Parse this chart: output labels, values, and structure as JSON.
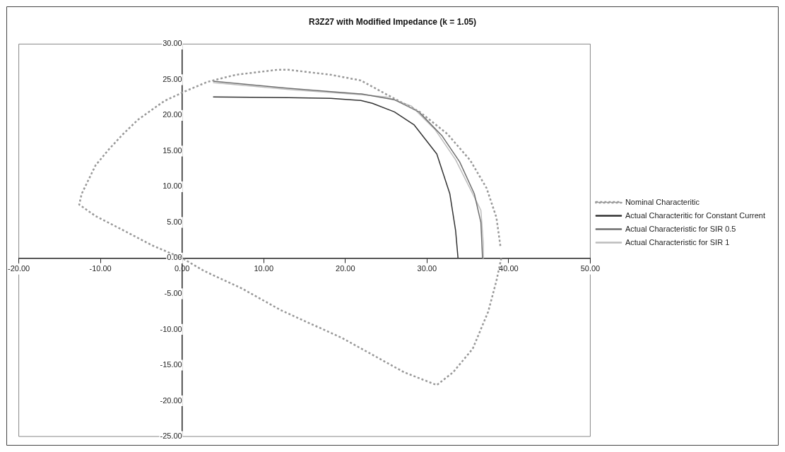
{
  "chart_data": {
    "type": "line",
    "title": "R3Z27 with Modified Impedance (k = 1.05)",
    "xlim": [
      -20,
      50
    ],
    "ylim": [
      -25,
      30
    ],
    "xticks": [
      {
        "value": -20,
        "label": "-20.00"
      },
      {
        "value": -10,
        "label": "-10.00"
      },
      {
        "value": 0,
        "label": "0.00"
      },
      {
        "value": 10,
        "label": "10.00"
      },
      {
        "value": 20,
        "label": "20.00"
      },
      {
        "value": 30,
        "label": "30.00"
      },
      {
        "value": 40,
        "label": "40.00"
      },
      {
        "value": 50,
        "label": "50.00"
      }
    ],
    "yticks": [
      {
        "value": -25,
        "label": "-25.00"
      },
      {
        "value": -20,
        "label": "-20.00"
      },
      {
        "value": -15,
        "label": "-15.00"
      },
      {
        "value": -10,
        "label": "-10.00"
      },
      {
        "value": -5,
        "label": "-5.00"
      },
      {
        "value": 0,
        "label": "0.00"
      },
      {
        "value": 5,
        "label": "5.00"
      },
      {
        "value": 10,
        "label": "10.00"
      },
      {
        "value": 15,
        "label": "15.00"
      },
      {
        "value": 20,
        "label": "20.00"
      },
      {
        "value": 25,
        "label": "25.00"
      },
      {
        "value": 30,
        "label": "30.00"
      }
    ],
    "grid": false,
    "legend": "right",
    "marker": "none",
    "series": [
      {
        "name": "Nominal Characteritic",
        "color": "#999999",
        "line_style": "dotted",
        "x": [
          39.1,
          38.5,
          37.5,
          35.6,
          33.2,
          31.2,
          27.2,
          19.6,
          12.1,
          7.4,
          2.7,
          0,
          -3.7,
          -7.2,
          -10.6,
          -12.6,
          -12.3,
          -10.6,
          -9.0,
          -7.3,
          -5.4,
          -2.2,
          0.2,
          3.1,
          6.6,
          11.7,
          13.0,
          18.2,
          21.9,
          25.6,
          29.1,
          32.5,
          35.3,
          37.3,
          38.5,
          39.0
        ],
        "values": [
          0,
          -3.2,
          -7.5,
          -12.7,
          -16.0,
          -17.8,
          -16.0,
          -11.2,
          -7.3,
          -4.3,
          -1.8,
          0,
          1.8,
          3.9,
          5.9,
          7.5,
          9.0,
          13.0,
          15.2,
          17.3,
          19.4,
          22.0,
          23.3,
          24.7,
          25.7,
          26.4,
          26.4,
          25.7,
          24.9,
          22.6,
          20.5,
          17.4,
          13.7,
          9.8,
          5.7,
          1.6
        ]
      },
      {
        "name": "Actual Characteritic for Constant Current",
        "color": "#333333",
        "line_style": "solid",
        "x": [
          3.8,
          13.0,
          18.2,
          21.9,
          23.3,
          26.0,
          28.4,
          31.2,
          32.8,
          33.5,
          33.8
        ],
        "values": [
          22.6,
          22.5,
          22.4,
          22.1,
          21.7,
          20.5,
          18.7,
          14.6,
          9.0,
          3.9,
          0
        ]
      },
      {
        "name": "Actual Characteristic for SIR 0.5",
        "color": "#6e6e6e",
        "line_style": "solid",
        "x": [
          3.8,
          13.0,
          22.0,
          26.0,
          29.0,
          31.8,
          34.0,
          35.8,
          36.6,
          36.8
        ],
        "values": [
          24.8,
          23.8,
          23.0,
          22.2,
          20.5,
          17.2,
          13.5,
          9.0,
          5.0,
          0
        ]
      },
      {
        "name": "Actual Characteristic for SIR 1",
        "color": "#bdbdbd",
        "line_style": "solid",
        "x": [
          3.8,
          13.3,
          21.9,
          25.0,
          28.1,
          31.0,
          33.5,
          35.6,
          36.6,
          36.9,
          36.9
        ],
        "values": [
          24.6,
          23.6,
          22.9,
          22.6,
          21.3,
          18.0,
          13.8,
          9.0,
          6.7,
          2.0,
          0
        ]
      }
    ]
  }
}
